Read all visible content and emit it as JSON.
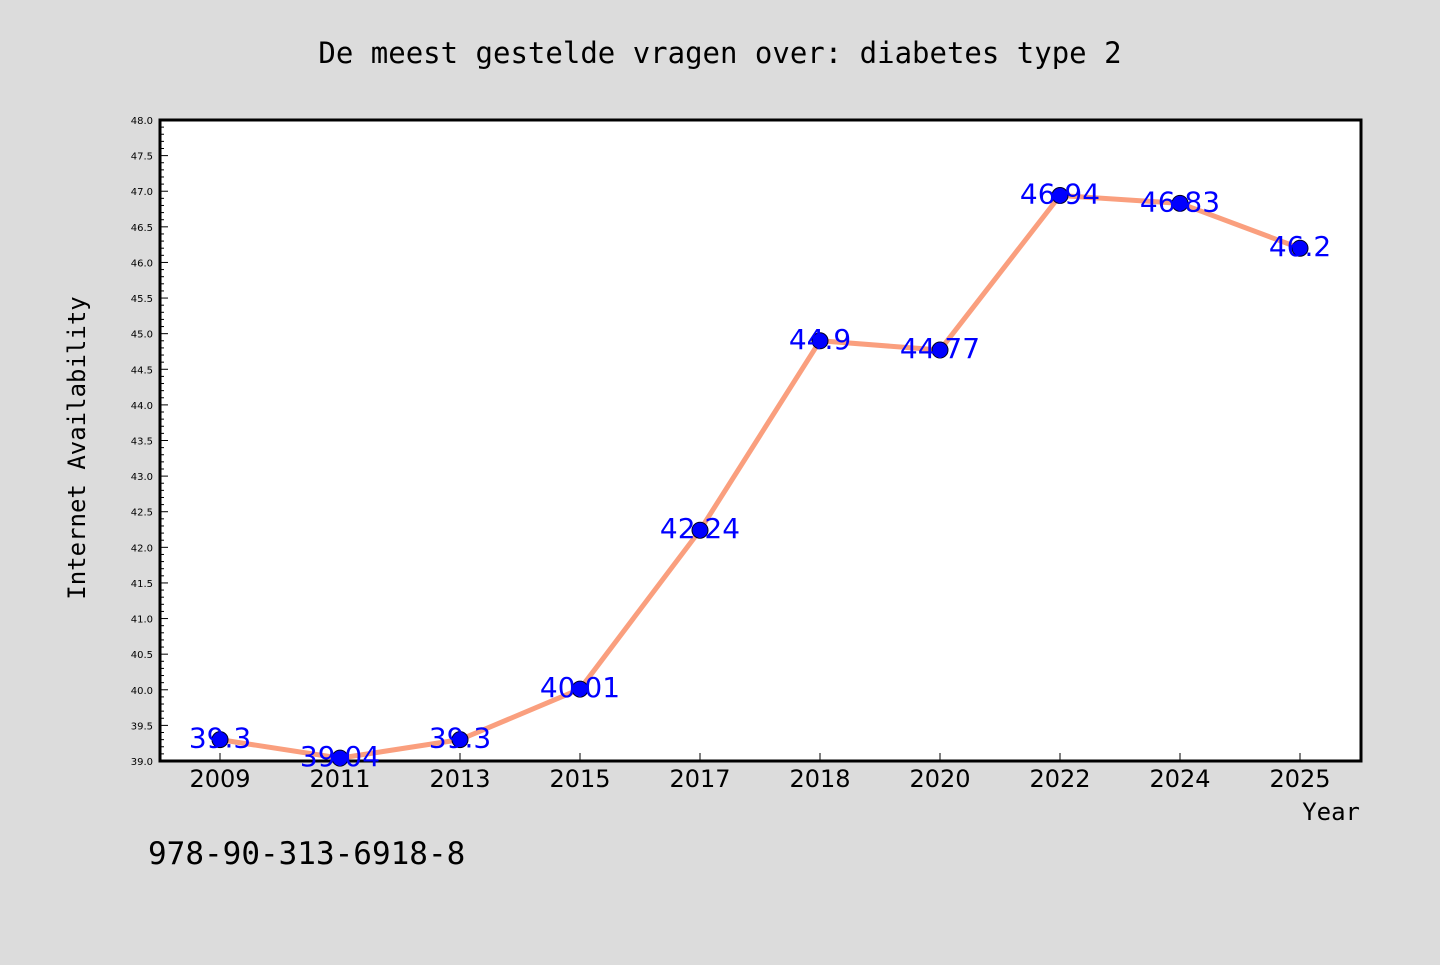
{
  "chart_data": {
    "type": "line",
    "title": "De meest gestelde vragen over: diabetes type 2",
    "xlabel": "Year",
    "ylabel": "Internet Availability",
    "categories": [
      "2009",
      "2011",
      "2013",
      "2015",
      "2017",
      "2018",
      "2020",
      "2022",
      "2024",
      "2025"
    ],
    "series": [
      {
        "values": [
          39.3,
          39.04,
          39.3,
          40.01,
          42.24,
          44.9,
          44.77,
          46.94,
          46.83,
          46.2
        ],
        "data_labels": [
          "39.3",
          "39.04",
          "39.3",
          "40.01",
          "42.24",
          "44.9",
          "44.77",
          "46.94",
          "46.83",
          "46.2"
        ],
        "line_color": "#fa9f7e",
        "marker_color": "#0000ff",
        "label_color": "#0000ff"
      }
    ],
    "ylim": [
      39.0,
      48.0
    ],
    "y_ticks": [
      "39.0",
      "39.5",
      "40.0",
      "40.5",
      "41.0",
      "41.5",
      "42.0",
      "42.5",
      "43.0",
      "43.5",
      "44.0",
      "44.5",
      "45.0",
      "45.5",
      "46.0",
      "46.5",
      "47.0",
      "47.5",
      "48.0"
    ],
    "grid": false,
    "legend": "none"
  },
  "annotation": "978-90-313-6918-8",
  "colors": {
    "background": "#dcdcdc",
    "plot_background": "#ffffff",
    "axis": "#000000"
  }
}
